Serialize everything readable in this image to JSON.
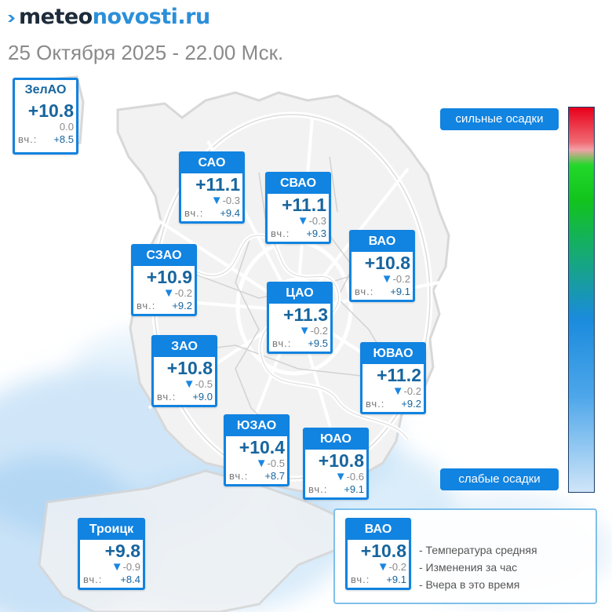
{
  "header": {
    "logo_part_a": "meteo",
    "logo_part_b": "novosti.ru",
    "datetime": "25 Октября 2025 - 22.00 Мск."
  },
  "labels": {
    "yesterday_prefix": "вч.:"
  },
  "colors": {
    "accent": "#1183e0",
    "temperature_text": "#17659e",
    "arrow_down": "#1a86e0"
  },
  "districts": [
    {
      "id": "zelao",
      "name": "ЗелАО",
      "temp": "+10.8",
      "change": "0.0",
      "trend": "none",
      "yesterday": "+8.5"
    },
    {
      "id": "sao",
      "name": "САО",
      "temp": "+11.1",
      "change": "-0.3",
      "trend": "down",
      "yesterday": "+9.4"
    },
    {
      "id": "svao",
      "name": "СВАО",
      "temp": "+11.1",
      "change": "-0.3",
      "trend": "down",
      "yesterday": "+9.3"
    },
    {
      "id": "vao",
      "name": "ВАО",
      "temp": "+10.8",
      "change": "-0.2",
      "trend": "down",
      "yesterday": "+9.1"
    },
    {
      "id": "szao",
      "name": "СЗАО",
      "temp": "+10.9",
      "change": "-0.2",
      "trend": "down",
      "yesterday": "+9.2"
    },
    {
      "id": "cao",
      "name": "ЦАО",
      "temp": "+11.3",
      "change": "-0.2",
      "trend": "down",
      "yesterday": "+9.5"
    },
    {
      "id": "zao",
      "name": "ЗАО",
      "temp": "+10.8",
      "change": "-0.5",
      "trend": "down",
      "yesterday": "+9.0"
    },
    {
      "id": "yuvao",
      "name": "ЮВАО",
      "temp": "+11.2",
      "change": "-0.2",
      "trend": "down",
      "yesterday": "+9.2"
    },
    {
      "id": "yuzao",
      "name": "ЮЗАО",
      "temp": "+10.4",
      "change": "-0.5",
      "trend": "down",
      "yesterday": "+8.7"
    },
    {
      "id": "yuao",
      "name": "ЮАО",
      "temp": "+10.8",
      "change": "-0.6",
      "trend": "down",
      "yesterday": "+9.1"
    },
    {
      "id": "troick",
      "name": "Троицк",
      "temp": "+9.8",
      "change": "-0.9",
      "trend": "down",
      "yesterday": "+8.4"
    }
  ],
  "precip_scale": {
    "high_label": "сильные осадки",
    "low_label": "слабые осадки",
    "gradient_colors": [
      "#e8001a",
      "#22d82a",
      "#1a8bdc",
      "#cfe5f8"
    ]
  },
  "legend": {
    "sample": {
      "name": "ВАО",
      "temp": "+10.8",
      "change": "-0.2",
      "trend": "down",
      "yesterday": "+9.1"
    },
    "lines": [
      "- Температура средняя",
      "- Изменения за час",
      "- Вчера в это время"
    ]
  }
}
